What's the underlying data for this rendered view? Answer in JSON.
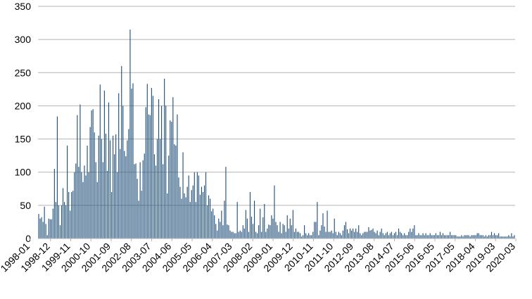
{
  "chart_data": {
    "type": "bar",
    "title": "",
    "xlabel": "",
    "ylabel": "",
    "ylim": [
      0,
      350
    ],
    "yticks": [
      "0",
      "50",
      "100",
      "150",
      "200",
      "250",
      "300",
      "350"
    ],
    "xtick_labels": [
      "1998-01",
      "1998-12",
      "1999-11",
      "2000-10",
      "2001-09",
      "2002-08",
      "2003-07",
      "2004-06",
      "2005-05",
      "2006-04",
      "2007-03",
      "2008-02",
      "2009-01",
      "2009-12",
      "2010-11",
      "2011-10",
      "2012-09",
      "2013-08",
      "2014-07",
      "2015-06",
      "2016-05",
      "2017-05",
      "2018-04",
      "2019-03",
      "2020-03"
    ],
    "grid": "horizontal",
    "legend": "none",
    "bar_color": "#1f4e79",
    "grid_color": "#b3b3b3",
    "x_start": "1998-01",
    "x_end": "2020-03",
    "values": [
      37,
      30,
      32,
      25,
      48,
      22,
      5,
      30,
      29,
      29,
      45,
      105,
      55,
      184,
      50,
      20,
      50,
      76,
      55,
      50,
      140,
      70,
      42,
      70,
      72,
      100,
      113,
      186,
      108,
      202,
      100,
      85,
      110,
      95,
      140,
      100,
      168,
      193,
      195,
      160,
      115,
      85,
      155,
      232,
      150,
      115,
      223,
      158,
      102,
      205,
      148,
      70,
      155,
      127,
      157,
      100,
      219,
      135,
      260,
      200,
      132,
      124,
      148,
      165,
      315,
      226,
      234,
      112,
      113,
      90,
      57,
      115,
      72,
      118,
      128,
      198,
      233,
      187,
      186,
      227,
      215,
      127,
      110,
      150,
      210,
      150,
      200,
      112,
      241,
      200,
      68,
      125,
      178,
      176,
      213,
      142,
      140,
      187,
      92,
      78,
      60,
      130,
      68,
      62,
      78,
      95,
      55,
      73,
      80,
      100,
      55,
      100,
      95,
      66,
      78,
      70,
      80,
      100,
      50,
      65,
      60,
      41,
      45,
      35,
      22,
      12,
      30,
      25,
      42,
      20,
      57,
      108,
      21,
      20,
      12,
      10,
      10,
      8,
      8,
      55,
      10,
      12,
      10,
      20,
      15,
      43,
      30,
      10,
      70,
      33,
      22,
      57,
      10,
      8,
      20,
      45,
      10,
      32,
      52,
      10,
      15,
      21,
      20,
      35,
      30,
      80,
      25,
      20,
      10,
      25,
      8,
      22,
      20,
      10,
      35,
      15,
      30,
      20,
      43,
      10,
      15,
      10,
      10,
      8,
      3,
      5,
      20,
      8,
      5,
      8,
      5,
      5,
      10,
      25,
      25,
      55,
      5,
      12,
      20,
      38,
      18,
      10,
      42,
      10,
      10,
      12,
      8,
      30,
      10,
      5,
      10,
      8,
      5,
      12,
      20,
      25,
      14,
      8,
      15,
      12,
      15,
      10,
      15,
      10,
      20,
      8,
      5,
      8,
      10,
      10,
      10,
      17,
      12,
      13,
      15,
      10,
      8,
      12,
      5,
      10,
      15,
      8,
      5,
      8,
      10,
      5,
      8,
      10,
      5,
      8,
      10,
      5,
      15,
      10,
      8,
      5,
      8,
      5,
      5,
      10,
      15,
      10,
      15,
      20,
      5,
      5,
      8,
      5,
      5,
      8,
      5,
      8,
      5,
      5,
      8,
      5,
      5,
      5,
      8,
      5,
      5,
      10,
      5,
      8,
      5,
      5,
      5,
      5,
      10,
      5,
      5,
      5,
      5,
      3,
      3,
      3,
      5,
      3,
      5,
      5,
      5,
      5,
      3,
      5,
      5,
      5,
      5,
      8,
      8,
      5,
      5,
      5,
      3,
      5,
      3,
      5,
      5,
      10,
      5,
      8,
      5,
      5,
      8,
      3,
      3,
      3,
      3,
      3,
      3,
      5,
      3,
      8,
      3,
      5
    ]
  }
}
